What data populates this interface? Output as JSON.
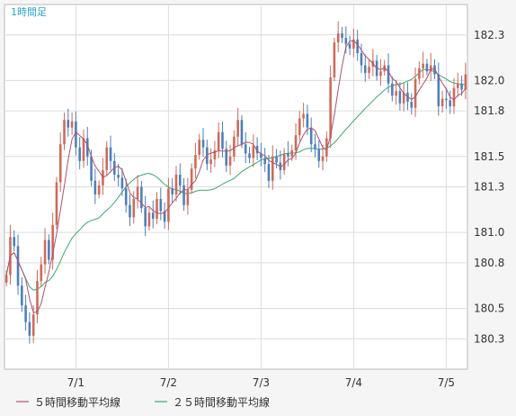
{
  "chart_data": {
    "type": "candlestick",
    "title": "1時間足",
    "y_ticks": [
      182.3,
      182.0,
      181.8,
      181.5,
      181.3,
      181.0,
      180.8,
      180.5,
      180.3
    ],
    "ylim": [
      180.1,
      182.5
    ],
    "x_ticks": [
      "7/1",
      "7/2",
      "7/3",
      "7/4",
      "7/5"
    ],
    "x_tick_index": [
      18,
      42,
      66,
      90,
      114
    ],
    "bar_count": 120,
    "grid": true,
    "up_color": "#cd6a5a",
    "down_color": "#4d7fb8",
    "series": [
      {
        "name": "５時間移動平均線",
        "color": "#b0506e"
      },
      {
        "name": "２５時間移動平均線",
        "color": "#3aa86a"
      }
    ],
    "closes": [
      180.72,
      180.97,
      180.91,
      180.65,
      180.52,
      180.41,
      180.32,
      180.46,
      180.68,
      180.79,
      180.95,
      180.82,
      181.05,
      181.33,
      181.58,
      181.74,
      181.69,
      181.73,
      181.56,
      181.47,
      181.62,
      181.5,
      181.34,
      181.25,
      181.31,
      181.41,
      181.56,
      181.47,
      181.38,
      181.36,
      181.29,
      181.18,
      181.1,
      181.22,
      181.3,
      181.16,
      181.04,
      181.13,
      181.09,
      181.22,
      181.14,
      181.07,
      181.29,
      181.25,
      181.38,
      181.31,
      181.18,
      181.28,
      181.42,
      181.51,
      181.61,
      181.56,
      181.45,
      181.48,
      181.54,
      181.66,
      181.55,
      181.44,
      181.5,
      181.63,
      181.74,
      181.58,
      181.52,
      181.49,
      181.57,
      181.52,
      181.49,
      181.45,
      181.34,
      181.5,
      181.46,
      181.41,
      181.52,
      181.5,
      181.54,
      181.64,
      181.75,
      181.78,
      181.69,
      181.58,
      181.55,
      181.47,
      181.5,
      181.62,
      182.02,
      182.25,
      182.31,
      182.28,
      182.24,
      182.21,
      182.27,
      182.18,
      182.1,
      182.05,
      182.09,
      182.13,
      182.03,
      182.06,
      182.1,
      181.98,
      181.9,
      181.93,
      181.85,
      181.92,
      181.86,
      181.82,
      182.01,
      182.08,
      182.11,
      182.06,
      182.1,
      182.04,
      181.83,
      181.88,
      181.87,
      181.83,
      181.95,
      181.98,
      181.94,
      182.04
    ]
  },
  "legend": [
    {
      "label": "５時間移動平均線",
      "color": "#b0506e"
    },
    {
      "label": "２５時間移動平均線",
      "color": "#3aa86a"
    }
  ]
}
